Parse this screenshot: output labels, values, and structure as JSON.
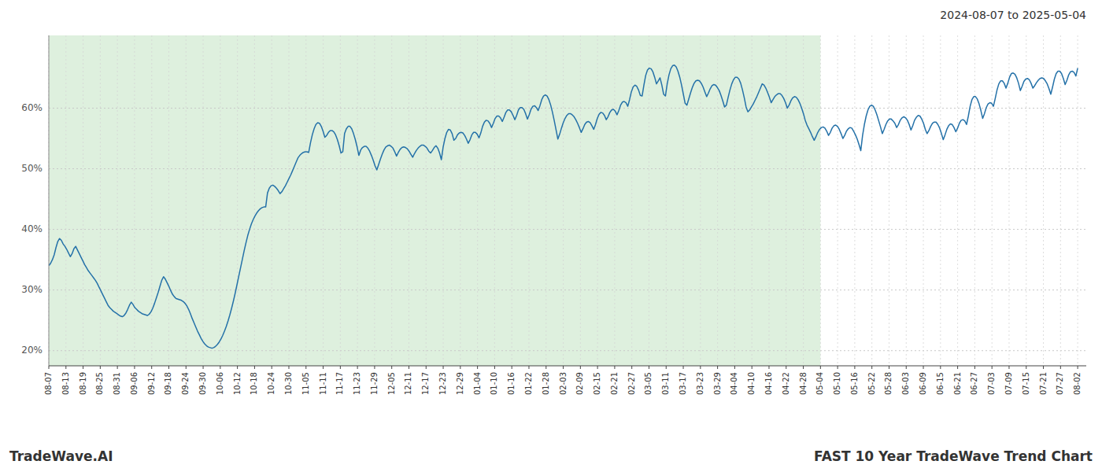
{
  "chart_data": {
    "type": "line",
    "title": "2024-08-07 to 2025-05-04",
    "annotations": [
      "TradeWave.AI",
      "FAST 10 Year TradeWave Trend Chart"
    ],
    "color": "#2471a8",
    "grid": true,
    "shaded_range": [
      0,
      430.5
    ],
    "shaded_color": "#cce8cc",
    "ylim": [
      0.175,
      0.72
    ],
    "yticks": [
      {
        "value": 0.2,
        "label": "20%"
      },
      {
        "value": 0.3,
        "label": "30%"
      },
      {
        "value": 0.4,
        "label": "40%"
      },
      {
        "value": 0.5,
        "label": "50%"
      },
      {
        "value": 0.6,
        "label": "60%"
      }
    ],
    "xlim": [
      0,
      578.7833
    ],
    "xticks": [
      {
        "value": 0,
        "label": "08-07"
      },
      {
        "value": 9.5667,
        "label": "08-13"
      },
      {
        "value": 19.1333,
        "label": "08-19"
      },
      {
        "value": 28.7,
        "label": "08-25"
      },
      {
        "value": 38.2667,
        "label": "08-31"
      },
      {
        "value": 47.8333,
        "label": "09-06"
      },
      {
        "value": 57.4,
        "label": "09-12"
      },
      {
        "value": 66.9667,
        "label": "09-18"
      },
      {
        "value": 76.5333,
        "label": "09-24"
      },
      {
        "value": 86.1,
        "label": "09-30"
      },
      {
        "value": 95.6667,
        "label": "10-06"
      },
      {
        "value": 105.2333,
        "label": "10-12"
      },
      {
        "value": 114.8,
        "label": "10-18"
      },
      {
        "value": 124.3667,
        "label": "10-24"
      },
      {
        "value": 133.9333,
        "label": "10-30"
      },
      {
        "value": 143.5,
        "label": "11-05"
      },
      {
        "value": 153.0667,
        "label": "11-11"
      },
      {
        "value": 162.6333,
        "label": "11-17"
      },
      {
        "value": 172.2,
        "label": "11-23"
      },
      {
        "value": 181.7667,
        "label": "11-29"
      },
      {
        "value": 191.3333,
        "label": "12-05"
      },
      {
        "value": 200.9,
        "label": "12-11"
      },
      {
        "value": 210.4667,
        "label": "12-17"
      },
      {
        "value": 220.0333,
        "label": "12-23"
      },
      {
        "value": 229.6,
        "label": "12-29"
      },
      {
        "value": 239.1667,
        "label": "01-04"
      },
      {
        "value": 248.7333,
        "label": "01-10"
      },
      {
        "value": 258.3,
        "label": "01-16"
      },
      {
        "value": 267.8667,
        "label": "01-22"
      },
      {
        "value": 277.4333,
        "label": "01-28"
      },
      {
        "value": 287,
        "label": "02-03"
      },
      {
        "value": 296.5667,
        "label": "02-09"
      },
      {
        "value": 306.1333,
        "label": "02-15"
      },
      {
        "value": 315.7,
        "label": "02-21"
      },
      {
        "value": 325.2667,
        "label": "02-27"
      },
      {
        "value": 334.8333,
        "label": "03-05"
      },
      {
        "value": 344.4,
        "label": "03-11"
      },
      {
        "value": 353.9667,
        "label": "03-17"
      },
      {
        "value": 363.5333,
        "label": "03-23"
      },
      {
        "value": 373.1,
        "label": "03-29"
      },
      {
        "value": 382.6667,
        "label": "04-04"
      },
      {
        "value": 392.2333,
        "label": "04-10"
      },
      {
        "value": 401.8,
        "label": "04-16"
      },
      {
        "value": 411.3667,
        "label": "04-22"
      },
      {
        "value": 420.9333,
        "label": "04-28"
      },
      {
        "value": 430.5,
        "label": "05-04"
      },
      {
        "value": 440.0667,
        "label": "05-10"
      },
      {
        "value": 449.6333,
        "label": "05-16"
      },
      {
        "value": 459.2,
        "label": "05-22"
      },
      {
        "value": 468.7667,
        "label": "05-28"
      },
      {
        "value": 478.3333,
        "label": "06-03"
      },
      {
        "value": 487.9,
        "label": "06-09"
      },
      {
        "value": 497.4667,
        "label": "06-15"
      },
      {
        "value": 507.0333,
        "label": "06-21"
      },
      {
        "value": 516.6,
        "label": "06-27"
      },
      {
        "value": 526.1667,
        "label": "07-03"
      },
      {
        "value": 535.7333,
        "label": "07-09"
      },
      {
        "value": 545.3,
        "label": "07-15"
      },
      {
        "value": 554.8667,
        "label": "07-21"
      },
      {
        "value": 564.4333,
        "label": "07-27"
      },
      {
        "value": 574,
        "label": "08-02"
      }
    ],
    "values": [
      0.34,
      0.344,
      0.35,
      0.358,
      0.37,
      0.38,
      0.385,
      0.382,
      0.376,
      0.372,
      0.367,
      0.361,
      0.355,
      0.36,
      0.368,
      0.372,
      0.366,
      0.36,
      0.354,
      0.348,
      0.342,
      0.337,
      0.332,
      0.328,
      0.324,
      0.32,
      0.316,
      0.311,
      0.305,
      0.299,
      0.293,
      0.287,
      0.281,
      0.275,
      0.271,
      0.268,
      0.265,
      0.263,
      0.261,
      0.259,
      0.257,
      0.256,
      0.258,
      0.262,
      0.268,
      0.275,
      0.28,
      0.276,
      0.271,
      0.268,
      0.265,
      0.263,
      0.261,
      0.26,
      0.259,
      0.258,
      0.26,
      0.264,
      0.27,
      0.278,
      0.287,
      0.296,
      0.306,
      0.316,
      0.322,
      0.318,
      0.312,
      0.306,
      0.299,
      0.293,
      0.289,
      0.286,
      0.285,
      0.284,
      0.283,
      0.281,
      0.278,
      0.274,
      0.268,
      0.261,
      0.253,
      0.246,
      0.239,
      0.232,
      0.226,
      0.22,
      0.215,
      0.211,
      0.208,
      0.206,
      0.205,
      0.204,
      0.205,
      0.207,
      0.21,
      0.214,
      0.219,
      0.225,
      0.232,
      0.24,
      0.249,
      0.259,
      0.27,
      0.282,
      0.295,
      0.309,
      0.323,
      0.337,
      0.351,
      0.365,
      0.378,
      0.39,
      0.4,
      0.409,
      0.416,
      0.422,
      0.427,
      0.431,
      0.434,
      0.436,
      0.437,
      0.437,
      0.46,
      0.468,
      0.472,
      0.473,
      0.471,
      0.468,
      0.464,
      0.459,
      0.462,
      0.467,
      0.472,
      0.478,
      0.484,
      0.49,
      0.497,
      0.504,
      0.511,
      0.518,
      0.522,
      0.525,
      0.527,
      0.528,
      0.528,
      0.527,
      0.543,
      0.556,
      0.566,
      0.573,
      0.576,
      0.575,
      0.57,
      0.562,
      0.552,
      0.555,
      0.56,
      0.563,
      0.563,
      0.561,
      0.556,
      0.548,
      0.538,
      0.526,
      0.528,
      0.558,
      0.566,
      0.57,
      0.57,
      0.566,
      0.558,
      0.548,
      0.536,
      0.522,
      0.531,
      0.535,
      0.537,
      0.537,
      0.534,
      0.529,
      0.522,
      0.514,
      0.505,
      0.498,
      0.507,
      0.516,
      0.524,
      0.531,
      0.536,
      0.538,
      0.539,
      0.537,
      0.534,
      0.528,
      0.521,
      0.527,
      0.532,
      0.535,
      0.536,
      0.535,
      0.533,
      0.529,
      0.524,
      0.519,
      0.525,
      0.53,
      0.534,
      0.537,
      0.539,
      0.539,
      0.537,
      0.534,
      0.529,
      0.526,
      0.53,
      0.535,
      0.538,
      0.534,
      0.526,
      0.515,
      0.536,
      0.55,
      0.56,
      0.565,
      0.564,
      0.558,
      0.547,
      0.55,
      0.556,
      0.559,
      0.56,
      0.559,
      0.555,
      0.549,
      0.542,
      0.548,
      0.556,
      0.56,
      0.56,
      0.557,
      0.551,
      0.559,
      0.57,
      0.577,
      0.58,
      0.579,
      0.575,
      0.568,
      0.575,
      0.583,
      0.587,
      0.587,
      0.584,
      0.578,
      0.585,
      0.593,
      0.597,
      0.597,
      0.594,
      0.588,
      0.581,
      0.588,
      0.597,
      0.601,
      0.601,
      0.598,
      0.591,
      0.582,
      0.589,
      0.598,
      0.603,
      0.604,
      0.601,
      0.596,
      0.604,
      0.614,
      0.62,
      0.622,
      0.62,
      0.614,
      0.605,
      0.593,
      0.579,
      0.564,
      0.549,
      0.557,
      0.567,
      0.576,
      0.583,
      0.588,
      0.591,
      0.591,
      0.589,
      0.586,
      0.581,
      0.575,
      0.568,
      0.56,
      0.566,
      0.573,
      0.577,
      0.578,
      0.576,
      0.571,
      0.565,
      0.573,
      0.583,
      0.59,
      0.593,
      0.592,
      0.588,
      0.581,
      0.586,
      0.593,
      0.597,
      0.598,
      0.595,
      0.589,
      0.596,
      0.605,
      0.61,
      0.611,
      0.609,
      0.603,
      0.614,
      0.627,
      0.635,
      0.638,
      0.636,
      0.63,
      0.621,
      0.62,
      0.638,
      0.654,
      0.663,
      0.666,
      0.665,
      0.66,
      0.651,
      0.64,
      0.645,
      0.65,
      0.638,
      0.623,
      0.62,
      0.64,
      0.655,
      0.665,
      0.67,
      0.671,
      0.668,
      0.661,
      0.651,
      0.638,
      0.623,
      0.608,
      0.605,
      0.615,
      0.625,
      0.634,
      0.641,
      0.645,
      0.646,
      0.645,
      0.641,
      0.635,
      0.627,
      0.619,
      0.625,
      0.632,
      0.637,
      0.639,
      0.638,
      0.634,
      0.629,
      0.621,
      0.612,
      0.602,
      0.605,
      0.618,
      0.63,
      0.64,
      0.647,
      0.651,
      0.651,
      0.648,
      0.641,
      0.63,
      0.617,
      0.602,
      0.594,
      0.597,
      0.602,
      0.607,
      0.613,
      0.619,
      0.626,
      0.633,
      0.64,
      0.638,
      0.633,
      0.626,
      0.618,
      0.609,
      0.614,
      0.619,
      0.622,
      0.624,
      0.624,
      0.621,
      0.616,
      0.609,
      0.6,
      0.605,
      0.612,
      0.617,
      0.619,
      0.618,
      0.614,
      0.608,
      0.6,
      0.591,
      0.58,
      0.572,
      0.566,
      0.56,
      0.553,
      0.547,
      0.553,
      0.56,
      0.565,
      0.568,
      0.569,
      0.567,
      0.562,
      0.555,
      0.56,
      0.567,
      0.571,
      0.572,
      0.57,
      0.565,
      0.558,
      0.55,
      0.555,
      0.562,
      0.566,
      0.568,
      0.567,
      0.562,
      0.556,
      0.549,
      0.54,
      0.53,
      0.555,
      0.573,
      0.587,
      0.597,
      0.603,
      0.605,
      0.603,
      0.597,
      0.589,
      0.579,
      0.569,
      0.558,
      0.565,
      0.573,
      0.579,
      0.582,
      0.582,
      0.579,
      0.575,
      0.568,
      0.573,
      0.58,
      0.584,
      0.586,
      0.584,
      0.58,
      0.573,
      0.564,
      0.571,
      0.58,
      0.585,
      0.588,
      0.587,
      0.582,
      0.575,
      0.565,
      0.558,
      0.563,
      0.57,
      0.575,
      0.577,
      0.577,
      0.573,
      0.567,
      0.558,
      0.548,
      0.556,
      0.565,
      0.571,
      0.574,
      0.573,
      0.568,
      0.561,
      0.567,
      0.575,
      0.58,
      0.581,
      0.579,
      0.573,
      0.587,
      0.603,
      0.614,
      0.619,
      0.619,
      0.615,
      0.607,
      0.596,
      0.583,
      0.591,
      0.601,
      0.607,
      0.609,
      0.608,
      0.603,
      0.616,
      0.63,
      0.64,
      0.645,
      0.645,
      0.641,
      0.633,
      0.641,
      0.651,
      0.657,
      0.658,
      0.656,
      0.65,
      0.641,
      0.629,
      0.636,
      0.644,
      0.648,
      0.649,
      0.647,
      0.641,
      0.633,
      0.637,
      0.642,
      0.646,
      0.649,
      0.65,
      0.649,
      0.645,
      0.64,
      0.632,
      0.623,
      0.635,
      0.648,
      0.657,
      0.661,
      0.661,
      0.657,
      0.649,
      0.639,
      0.646,
      0.655,
      0.66,
      0.661,
      0.659,
      0.653,
      0.666
    ]
  }
}
